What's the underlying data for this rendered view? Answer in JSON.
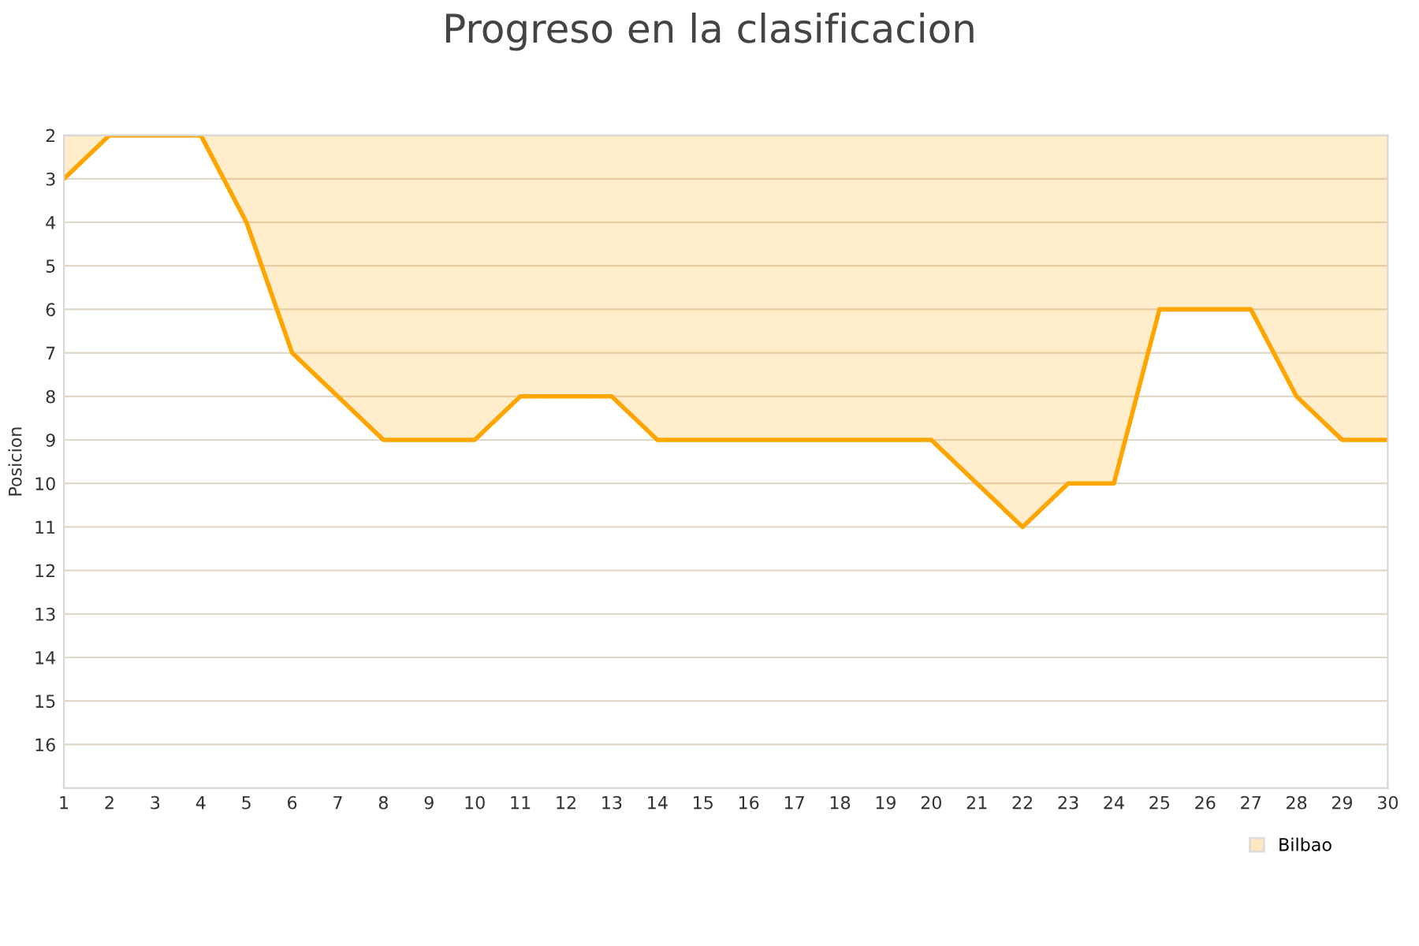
{
  "chart_data": {
    "type": "area",
    "title": "Progreso en la clasificacion",
    "ylabel": "Posicion",
    "x": [
      1,
      2,
      3,
      4,
      5,
      6,
      7,
      8,
      9,
      10,
      11,
      12,
      13,
      14,
      15,
      16,
      17,
      18,
      19,
      20,
      21,
      22,
      23,
      24,
      25,
      26,
      27,
      28,
      29,
      30
    ],
    "series": [
      {
        "name": "Bilbao",
        "color": "#ffa500",
        "values": [
          3,
          2,
          2,
          2,
          4,
          7,
          8,
          9,
          9,
          9,
          8,
          8,
          8,
          9,
          9,
          9,
          9,
          9,
          9,
          9,
          10,
          11,
          10,
          10,
          6,
          6,
          6,
          8,
          9,
          9
        ]
      }
    ],
    "xlim": [
      1,
      30
    ],
    "xticks": [
      1,
      2,
      3,
      4,
      5,
      6,
      7,
      8,
      9,
      10,
      11,
      12,
      13,
      14,
      15,
      16,
      17,
      18,
      19,
      20,
      21,
      22,
      23,
      24,
      25,
      26,
      27,
      28,
      29,
      30
    ],
    "ylim": [
      17,
      2
    ],
    "yticks": [
      2,
      3,
      4,
      5,
      6,
      7,
      8,
      9,
      10,
      11,
      12,
      13,
      14,
      15,
      16
    ],
    "grid": "y",
    "legend": "bottom right",
    "marker": "none",
    "line_style": "solid"
  }
}
